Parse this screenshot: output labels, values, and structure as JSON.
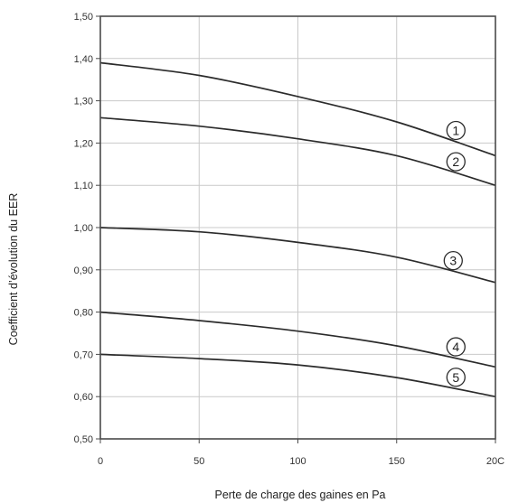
{
  "chart_data": {
    "type": "line",
    "title": "",
    "xlabel": "Perte de charge des gaines en Pa",
    "ylabel": "Coefficient d’évolution du EER",
    "xlim": [
      0,
      200
    ],
    "ylim": [
      0.5,
      1.5
    ],
    "x_ticks": [
      "0",
      "50",
      "100",
      "150",
      "20C"
    ],
    "y_ticks": [
      "0,50",
      "0,60",
      "0,70",
      "0,80",
      "0,90",
      "1,00",
      "1,10",
      "1,20",
      "1,30",
      "1,40",
      "1,50"
    ],
    "grid": true,
    "x": [
      0,
      50,
      100,
      150,
      200
    ],
    "series": [
      {
        "name": "1",
        "values": [
          1.39,
          1.36,
          1.31,
          1.25,
          1.17
        ]
      },
      {
        "name": "2",
        "values": [
          1.26,
          1.24,
          1.21,
          1.17,
          1.1
        ]
      },
      {
        "name": "3",
        "values": [
          1.0,
          0.99,
          0.965,
          0.93,
          0.87
        ]
      },
      {
        "name": "4",
        "values": [
          0.8,
          0.78,
          0.755,
          0.72,
          0.67
        ]
      },
      {
        "name": "5",
        "values": [
          0.7,
          0.69,
          0.675,
          0.645,
          0.6
        ]
      }
    ]
  }
}
